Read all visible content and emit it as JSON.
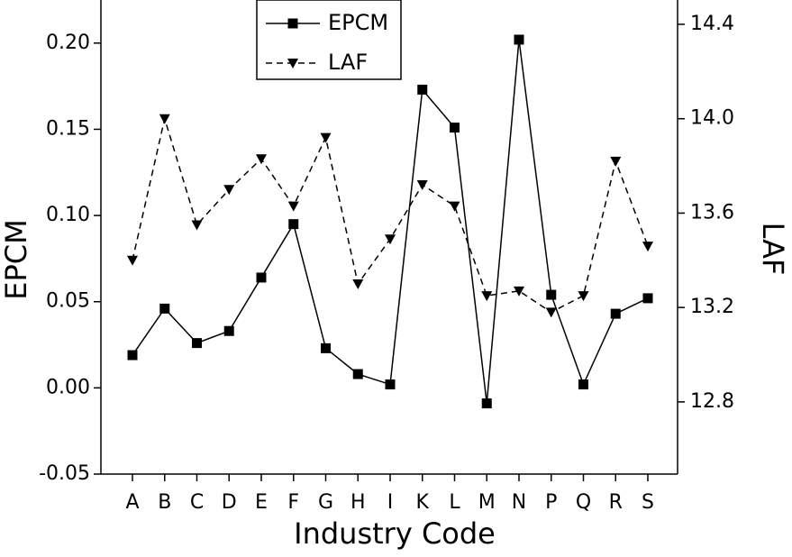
{
  "chart_data": {
    "type": "line",
    "xlabel": "Industry Code",
    "ylabel": "EPCM",
    "y2label": "LAF",
    "categories": [
      "A",
      "B",
      "C",
      "D",
      "E",
      "F",
      "G",
      "H",
      "I",
      "K",
      "L",
      "M",
      "N",
      "P",
      "Q",
      "R",
      "S"
    ],
    "series": [
      {
        "name": "EPCM",
        "color": "#000000",
        "marker": "square",
        "dash": "solid",
        "values": [
          0.019,
          0.046,
          0.026,
          0.033,
          0.064,
          0.095,
          0.023,
          0.008,
          0.002,
          0.173,
          0.151,
          -0.009,
          0.202,
          0.054,
          0.002,
          0.043,
          0.052
        ]
      },
      {
        "name": "LAF",
        "color": "#000000",
        "marker": "triangle-down",
        "dash": "dashed",
        "axis": "y2",
        "values": [
          13.4,
          14.0,
          13.55,
          13.7,
          13.83,
          13.63,
          13.92,
          13.3,
          13.49,
          13.72,
          13.63,
          13.25,
          13.27,
          13.18,
          13.25,
          13.82,
          13.46
        ]
      }
    ],
    "ylim": [
      -0.05,
      0.225
    ],
    "yticks": [
      -0.05,
      {
        "value": 0,
        "label": "0.00"
      },
      0.05,
      {
        "value": 0.1,
        "label": "0.10"
      },
      0.15,
      {
        "value": 0.2,
        "label": "0.20"
      }
    ],
    "y2lim": [
      12.494,
      14.503
    ],
    "y2ticks": [
      12.8,
      13.2,
      13.6,
      {
        "value": 14.0,
        "label": "14.0"
      },
      14.4
    ],
    "grid": false,
    "legend": "top-center"
  }
}
